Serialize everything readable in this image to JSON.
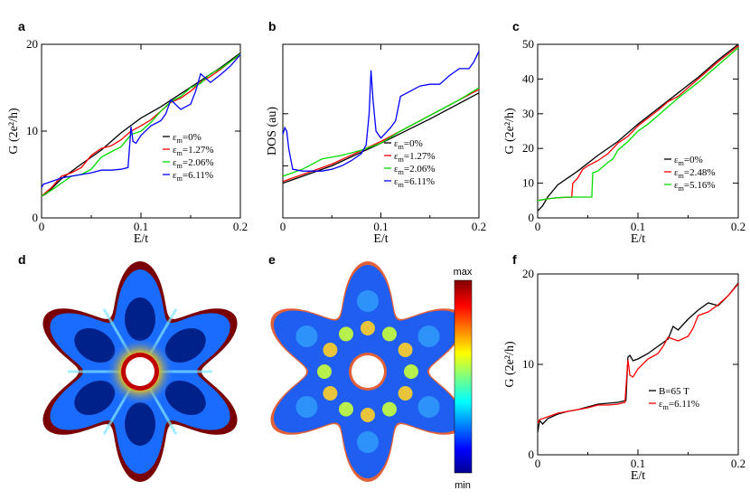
{
  "figure": {
    "labels": [
      "a",
      "b",
      "c",
      "d",
      "e",
      "f"
    ]
  },
  "chart_data": [
    {
      "id": "a",
      "type": "line",
      "xlabel": "E/t",
      "ylabel": "G (2e²/h)",
      "xlim": [
        0,
        0.2
      ],
      "ylim": [
        0,
        20
      ],
      "xticks": [
        "0",
        "0.1",
        "0.2"
      ],
      "yticks": [
        "0",
        "10",
        "20"
      ],
      "legend_position": "center-right",
      "series": [
        {
          "name": "εm=0%",
          "sub": "m",
          "label": "=0%",
          "color": "#000000",
          "x": [
            0,
            0.005,
            0.02,
            0.04,
            0.06,
            0.08,
            0.1,
            0.12,
            0.14,
            0.16,
            0.18,
            0.2
          ],
          "y": [
            2.5,
            2.8,
            4.5,
            6.2,
            7.8,
            9.8,
            11.5,
            12.8,
            14.3,
            15.8,
            17.3,
            19.0
          ]
        },
        {
          "name": "εm=1.27%",
          "sub": "m",
          "label": "=1.27%",
          "color": "#ff0000",
          "x": [
            0,
            0.01,
            0.02,
            0.03,
            0.04,
            0.05,
            0.06,
            0.07,
            0.08,
            0.09,
            0.1,
            0.11,
            0.12,
            0.13,
            0.14,
            0.15,
            0.16,
            0.17,
            0.18,
            0.19,
            0.2
          ],
          "y": [
            2.5,
            3.5,
            4.8,
            5.2,
            5.8,
            7.2,
            8.0,
            8.3,
            9.0,
            10.0,
            10.6,
            11.3,
            12.3,
            13.3,
            13.8,
            14.6,
            15.6,
            16.3,
            17.1,
            18.0,
            18.8
          ]
        },
        {
          "name": "εm=2.06%",
          "sub": "m",
          "label": "=2.06%",
          "color": "#00dd00",
          "x": [
            0,
            0.01,
            0.02,
            0.03,
            0.04,
            0.05,
            0.06,
            0.07,
            0.08,
            0.09,
            0.1,
            0.11,
            0.12,
            0.13,
            0.14,
            0.15,
            0.16,
            0.17,
            0.18,
            0.19,
            0.2
          ],
          "y": [
            2.5,
            3.2,
            4.0,
            4.8,
            5.0,
            5.6,
            7.0,
            7.6,
            8.2,
            9.6,
            10.0,
            11.0,
            12.3,
            13.4,
            14.0,
            15.0,
            15.5,
            16.6,
            17.2,
            18.0,
            18.9
          ]
        },
        {
          "name": "εm=6.11%",
          "sub": "m",
          "label": "=6.11%",
          "color": "#0000ff",
          "x": [
            0,
            0.002,
            0.005,
            0.01,
            0.02,
            0.03,
            0.04,
            0.05,
            0.06,
            0.07,
            0.08,
            0.087,
            0.09,
            0.092,
            0.095,
            0.1,
            0.11,
            0.12,
            0.125,
            0.13,
            0.14,
            0.15,
            0.155,
            0.16,
            0.17,
            0.18,
            0.19,
            0.2
          ],
          "y": [
            3.5,
            3.9,
            4.0,
            4.2,
            4.6,
            4.8,
            5.0,
            5.2,
            5.5,
            5.5,
            5.6,
            5.8,
            10.5,
            8.8,
            8.6,
            9.5,
            10.6,
            11.2,
            12.0,
            13.6,
            12.5,
            13.1,
            14.6,
            16.6,
            15.6,
            16.5,
            17.5,
            18.8
          ]
        }
      ]
    },
    {
      "id": "b",
      "type": "line",
      "xlabel": "E/t",
      "ylabel": "DOS (au)",
      "xlim": [
        0,
        0.2
      ],
      "ylim": [
        0,
        1
      ],
      "xticks": [
        "0",
        "0.1",
        "0.2"
      ],
      "yticks": [],
      "legend_position": "center-right",
      "series": [
        {
          "name": "εm=0%",
          "sub": "m",
          "label": "=0%",
          "color": "#000000",
          "x": [
            0,
            0.05,
            0.1,
            0.15,
            0.2
          ],
          "y": [
            0.2,
            0.3,
            0.43,
            0.57,
            0.72
          ]
        },
        {
          "name": "εm=1.27%",
          "sub": "m",
          "label": "=1.27%",
          "color": "#ff0000",
          "x": [
            0,
            0.05,
            0.1,
            0.15,
            0.2
          ],
          "y": [
            0.21,
            0.31,
            0.44,
            0.59,
            0.74
          ]
        },
        {
          "name": "εm=2.06%",
          "sub": "m",
          "label": "=2.06%",
          "color": "#00dd00",
          "x": [
            0,
            0.02,
            0.04,
            0.06,
            0.08,
            0.1,
            0.12,
            0.14,
            0.16,
            0.18,
            0.2
          ],
          "y": [
            0.24,
            0.28,
            0.34,
            0.36,
            0.39,
            0.43,
            0.5,
            0.56,
            0.62,
            0.68,
            0.75
          ]
        },
        {
          "name": "εm=6.11%",
          "sub": "m",
          "label": "=6.11%",
          "color": "#0000ff",
          "x": [
            0,
            0.002,
            0.004,
            0.006,
            0.01,
            0.02,
            0.03,
            0.04,
            0.05,
            0.06,
            0.07,
            0.08,
            0.085,
            0.088,
            0.09,
            0.092,
            0.095,
            0.1,
            0.11,
            0.115,
            0.12,
            0.13,
            0.14,
            0.15,
            0.16,
            0.17,
            0.18,
            0.19,
            0.195,
            0.2
          ],
          "y": [
            0.48,
            0.52,
            0.5,
            0.4,
            0.28,
            0.27,
            0.27,
            0.27,
            0.28,
            0.3,
            0.33,
            0.37,
            0.42,
            0.6,
            0.85,
            0.68,
            0.5,
            0.46,
            0.52,
            0.56,
            0.7,
            0.73,
            0.76,
            0.77,
            0.77,
            0.82,
            0.86,
            0.86,
            0.9,
            0.96
          ]
        }
      ]
    },
    {
      "id": "c",
      "type": "line",
      "xlabel": "E/t",
      "ylabel": "G (2e²/h)",
      "xlim": [
        0,
        0.2
      ],
      "ylim": [
        0,
        50
      ],
      "xticks": [
        "0",
        "0.1",
        "0.2"
      ],
      "yticks": [
        "0",
        "10",
        "20",
        "30",
        "40",
        "50"
      ],
      "legend_position": "lower-right",
      "series": [
        {
          "name": "εm=0%",
          "sub": "m",
          "label": "=0%",
          "color": "#000000",
          "x": [
            0,
            0.005,
            0.01,
            0.02,
            0.04,
            0.06,
            0.08,
            0.1,
            0.12,
            0.14,
            0.16,
            0.18,
            0.2
          ],
          "y": [
            2,
            3.5,
            6,
            9.5,
            13.5,
            18,
            22,
            27,
            31.5,
            36,
            40.5,
            45.5,
            50
          ]
        },
        {
          "name": "εm=2.48%",
          "sub": "m",
          "label": "=2.48%",
          "color": "#ff0000",
          "x": [
            0,
            0.01,
            0.02,
            0.034,
            0.035,
            0.04,
            0.045,
            0.05,
            0.06,
            0.07,
            0.08,
            0.09,
            0.1,
            0.12,
            0.13,
            0.14,
            0.16,
            0.18,
            0.2
          ],
          "y": [
            5,
            5.5,
            5.8,
            6,
            10,
            11.5,
            14,
            15,
            16.5,
            18.5,
            21.5,
            23.5,
            26.5,
            31,
            33.5,
            35,
            40,
            45,
            49.5
          ]
        },
        {
          "name": "εm=5.16%",
          "sub": "m",
          "label": "=5.16%",
          "color": "#00dd00",
          "x": [
            0,
            0.01,
            0.02,
            0.03,
            0.04,
            0.05,
            0.054,
            0.055,
            0.06,
            0.07,
            0.075,
            0.08,
            0.09,
            0.1,
            0.11,
            0.12,
            0.13,
            0.14,
            0.16,
            0.18,
            0.2
          ],
          "y": [
            5,
            5.5,
            5.8,
            6,
            6,
            6,
            6,
            13,
            13.5,
            16,
            17,
            19.5,
            22,
            25,
            27,
            29.5,
            32,
            34.5,
            39,
            44,
            49
          ]
        }
      ]
    },
    {
      "id": "f",
      "type": "line",
      "xlabel": "E/t",
      "ylabel": "G (2e²/h)",
      "xlim": [
        0,
        0.2
      ],
      "ylim": [
        0,
        20
      ],
      "xticks": [
        "0",
        "0.1",
        "0.2"
      ],
      "yticks": [
        "0",
        "10",
        "20"
      ],
      "legend_position": "center-right",
      "series": [
        {
          "name": "B=65 T",
          "sub": "",
          "label": "B=65 T",
          "color": "#000000",
          "x": [
            0,
            0.002,
            0.005,
            0.01,
            0.02,
            0.03,
            0.04,
            0.05,
            0.06,
            0.07,
            0.08,
            0.088,
            0.09,
            0.092,
            0.095,
            0.1,
            0.11,
            0.12,
            0.13,
            0.135,
            0.14,
            0.15,
            0.16,
            0.17,
            0.18,
            0.19,
            0.2
          ],
          "y": [
            2.5,
            3.8,
            3.4,
            4.0,
            4.5,
            4.8,
            5.0,
            5.3,
            5.6,
            5.7,
            5.8,
            6.0,
            10.8,
            11.0,
            10.4,
            10.6,
            11.2,
            12.0,
            12.8,
            14.2,
            13.8,
            15.0,
            16.0,
            16.8,
            16.5,
            17.6,
            19.0
          ]
        },
        {
          "name": "εm=6.11%",
          "sub": "m",
          "label": "=6.11%",
          "color": "#ff0000",
          "x": [
            0,
            0.002,
            0.005,
            0.01,
            0.02,
            0.03,
            0.04,
            0.05,
            0.06,
            0.07,
            0.08,
            0.087,
            0.09,
            0.092,
            0.095,
            0.1,
            0.11,
            0.12,
            0.125,
            0.13,
            0.14,
            0.15,
            0.155,
            0.16,
            0.17,
            0.18,
            0.19,
            0.2
          ],
          "y": [
            3.5,
            3.9,
            4.0,
            4.2,
            4.6,
            4.8,
            5.0,
            5.2,
            5.5,
            5.5,
            5.6,
            5.8,
            10.5,
            8.8,
            8.6,
            9.5,
            10.6,
            11.2,
            12.0,
            13.0,
            12.6,
            13.1,
            14.0,
            15.4,
            15.8,
            16.6,
            17.6,
            18.9
          ]
        }
      ]
    },
    {
      "id": "d",
      "type": "heatmap",
      "description_labels": []
    },
    {
      "id": "e",
      "type": "heatmap",
      "colorbar": {
        "max_label": "max",
        "min_label": "min"
      }
    }
  ]
}
